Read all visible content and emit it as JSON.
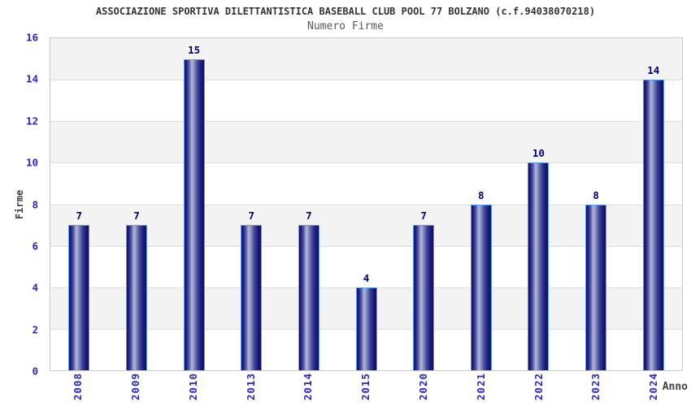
{
  "chart_data": {
    "type": "bar",
    "title": "ASSOCIAZIONE SPORTIVA DILETTANTISTICA BASEBALL CLUB POOL 77 BOLZANO (c.f.94038070218)",
    "subtitle": "Numero Firme",
    "xlabel": "Anno",
    "ylabel": "Firme",
    "categories": [
      "2008",
      "2009",
      "2010",
      "2013",
      "2014",
      "2015",
      "2020",
      "2021",
      "2022",
      "2023",
      "2024"
    ],
    "values": [
      7,
      7,
      15,
      7,
      7,
      4,
      7,
      8,
      10,
      8,
      14
    ],
    "ylim": [
      0,
      16
    ],
    "y_ticks": [
      0,
      2,
      4,
      6,
      8,
      10,
      12,
      14,
      16
    ],
    "grid": "horizontal gridlines with alternating gray/white bands",
    "legend_position": "none",
    "colors": {
      "bar_dark": "#10105e",
      "bar_highlight": "#b0b5d8",
      "bar_border": "#5e9ff5",
      "value_label": "#00007d",
      "tick_label": "#2626cc",
      "title": "#333333",
      "subtitle": "#595959",
      "axis_label": "#404040",
      "band_gray": "#f3f3f3",
      "gridline": "#dcdcdc",
      "plot_border": "#c9c9c9",
      "background": "#ffffff"
    }
  }
}
